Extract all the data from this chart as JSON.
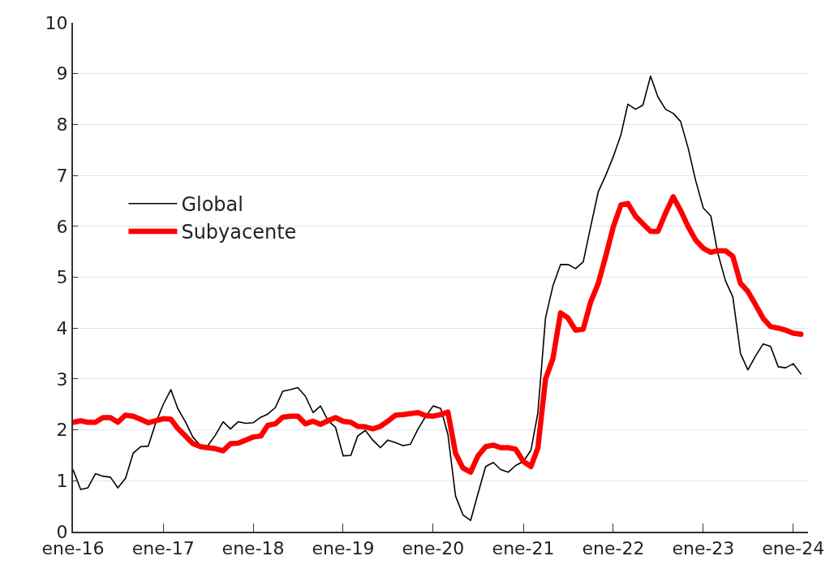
{
  "chart_data": {
    "type": "line",
    "x": [
      "2016-01",
      "2016-02",
      "2016-03",
      "2016-04",
      "2016-05",
      "2016-06",
      "2016-07",
      "2016-08",
      "2016-09",
      "2016-10",
      "2016-11",
      "2016-12",
      "2017-01",
      "2017-02",
      "2017-03",
      "2017-04",
      "2017-05",
      "2017-06",
      "2017-07",
      "2017-08",
      "2017-09",
      "2017-10",
      "2017-11",
      "2017-12",
      "2018-01",
      "2018-02",
      "2018-03",
      "2018-04",
      "2018-05",
      "2018-06",
      "2018-07",
      "2018-08",
      "2018-09",
      "2018-10",
      "2018-11",
      "2018-12",
      "2019-01",
      "2019-02",
      "2019-03",
      "2019-04",
      "2019-05",
      "2019-06",
      "2019-07",
      "2019-08",
      "2019-09",
      "2019-10",
      "2019-11",
      "2019-12",
      "2020-01",
      "2020-02",
      "2020-03",
      "2020-04",
      "2020-05",
      "2020-06",
      "2020-07",
      "2020-08",
      "2020-09",
      "2020-10",
      "2020-11",
      "2020-12",
      "2021-01",
      "2021-02",
      "2021-03",
      "2021-04",
      "2021-05",
      "2021-06",
      "2021-07",
      "2021-08",
      "2021-09",
      "2021-10",
      "2021-11",
      "2021-12",
      "2022-01",
      "2022-02",
      "2022-03",
      "2022-04",
      "2022-05",
      "2022-06",
      "2022-07",
      "2022-08",
      "2022-09",
      "2022-10",
      "2022-11",
      "2022-12",
      "2023-01",
      "2023-02",
      "2023-03",
      "2023-04",
      "2023-05",
      "2023-06",
      "2023-07",
      "2023-08",
      "2023-09",
      "2023-10",
      "2023-11",
      "2023-12",
      "2024-01",
      "2024-02"
    ],
    "series": [
      {
        "name": "Global",
        "color": "#000000",
        "values": [
          1.22,
          0.83,
          0.86,
          1.14,
          1.09,
          1.07,
          0.86,
          1.05,
          1.54,
          1.67,
          1.68,
          2.13,
          2.5,
          2.79,
          2.42,
          2.16,
          1.86,
          1.69,
          1.69,
          1.9,
          2.16,
          2.02,
          2.16,
          2.13,
          2.14,
          2.25,
          2.31,
          2.44,
          2.76,
          2.79,
          2.83,
          2.66,
          2.34,
          2.47,
          2.18,
          2.05,
          1.49,
          1.5,
          1.88,
          1.99,
          1.8,
          1.65,
          1.8,
          1.75,
          1.69,
          1.72,
          2.02,
          2.26,
          2.47,
          2.42,
          1.91,
          0.7,
          0.33,
          0.22,
          0.75,
          1.28,
          1.36,
          1.22,
          1.17,
          1.3,
          1.38,
          1.6,
          2.34,
          4.2,
          4.83,
          5.25,
          5.25,
          5.17,
          5.3,
          5.99,
          6.68,
          7.0,
          7.37,
          7.8,
          8.4,
          8.3,
          8.38,
          8.95,
          8.54,
          8.3,
          8.22,
          8.06,
          7.53,
          6.9,
          6.36,
          6.2,
          5.47,
          4.93,
          4.61,
          3.5,
          3.18,
          3.45,
          3.69,
          3.64,
          3.24,
          3.22,
          3.3,
          3.1
        ]
      },
      {
        "name": "Subyacente",
        "color": "#ff0000",
        "values": [
          2.15,
          2.18,
          2.15,
          2.15,
          2.24,
          2.24,
          2.15,
          2.29,
          2.27,
          2.21,
          2.14,
          2.18,
          2.22,
          2.21,
          2.03,
          1.88,
          1.73,
          1.67,
          1.65,
          1.63,
          1.59,
          1.73,
          1.74,
          1.8,
          1.86,
          1.88,
          2.09,
          2.12,
          2.25,
          2.27,
          2.27,
          2.12,
          2.17,
          2.11,
          2.18,
          2.24,
          2.17,
          2.15,
          2.07,
          2.06,
          2.02,
          2.07,
          2.17,
          2.29,
          2.3,
          2.32,
          2.34,
          2.28,
          2.27,
          2.3,
          2.35,
          1.54,
          1.25,
          1.17,
          1.49,
          1.67,
          1.7,
          1.65,
          1.65,
          1.62,
          1.38,
          1.28,
          1.65,
          3.0,
          3.4,
          4.3,
          4.2,
          3.96,
          3.98,
          4.51,
          4.88,
          5.41,
          5.99,
          6.42,
          6.45,
          6.2,
          6.05,
          5.9,
          5.9,
          6.26,
          6.58,
          6.31,
          5.99,
          5.73,
          5.57,
          5.49,
          5.52,
          5.52,
          5.41,
          4.88,
          4.72,
          4.46,
          4.19,
          4.03,
          4.0,
          3.96,
          3.9,
          3.88
        ]
      }
    ],
    "xlim": [
      "2016-01-01",
      "2024-03-01"
    ],
    "xticks": [
      {
        "value": "2016-01-01",
        "label": "ene-16"
      },
      {
        "value": "2017-01-01",
        "label": "ene-17"
      },
      {
        "value": "2018-01-01",
        "label": "ene-18"
      },
      {
        "value": "2019-01-01",
        "label": "ene-19"
      },
      {
        "value": "2020-01-01",
        "label": "ene-20"
      },
      {
        "value": "2021-01-01",
        "label": "ene-21"
      },
      {
        "value": "2022-01-01",
        "label": "ene-22"
      },
      {
        "value": "2023-01-01",
        "label": "ene-23"
      },
      {
        "value": "2024-01-01",
        "label": "ene-24"
      }
    ],
    "ylim": [
      0,
      10
    ],
    "yticks": [
      0,
      1,
      2,
      3,
      4,
      5,
      6,
      7,
      8,
      9,
      10
    ],
    "grid": "y",
    "legend": "left",
    "marker": "none",
    "line_style": "solid"
  }
}
